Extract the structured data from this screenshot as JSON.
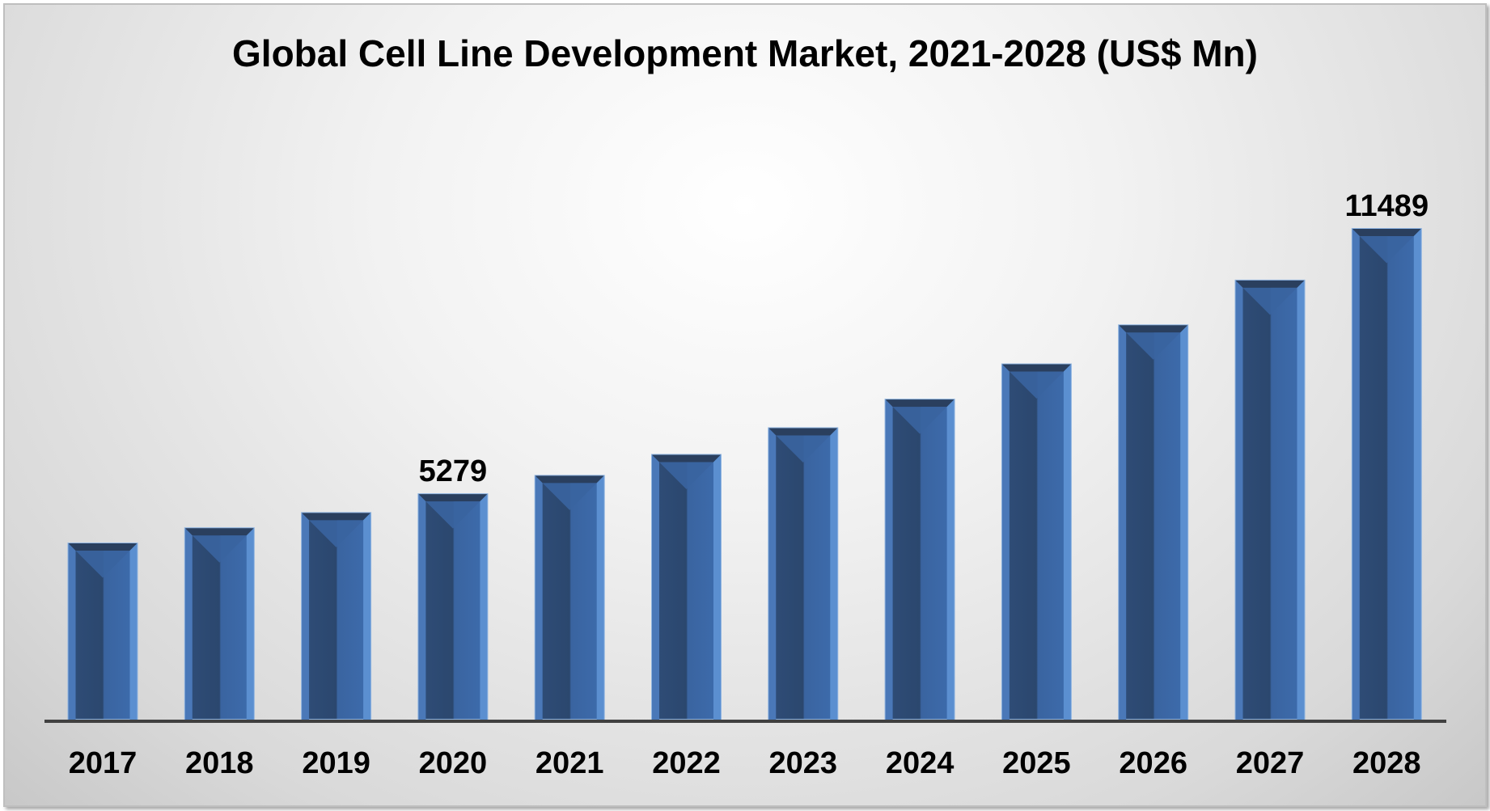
{
  "chart_data": {
    "type": "bar",
    "title": "Global Cell Line Development Market, 2021-2028 (US$ Mn)",
    "xlabel": "",
    "ylabel": "",
    "categories": [
      "2017",
      "2018",
      "2019",
      "2020",
      "2021",
      "2022",
      "2023",
      "2024",
      "2025",
      "2026",
      "2027",
      "2028"
    ],
    "values": [
      4126,
      4482,
      4839,
      5279,
      5709,
      6199,
      6824,
      7493,
      8318,
      9232,
      10280,
      11489
    ],
    "data_labels": {
      "2020": "5279",
      "2028": "11489"
    },
    "ylim": [
      0,
      11489
    ],
    "grid": false,
    "legend": "none",
    "colors": {
      "bar": "#3a64a0",
      "bar_dark": "#2c4a73",
      "bar_light": "#5b8fd0",
      "axis": "#404040"
    }
  }
}
